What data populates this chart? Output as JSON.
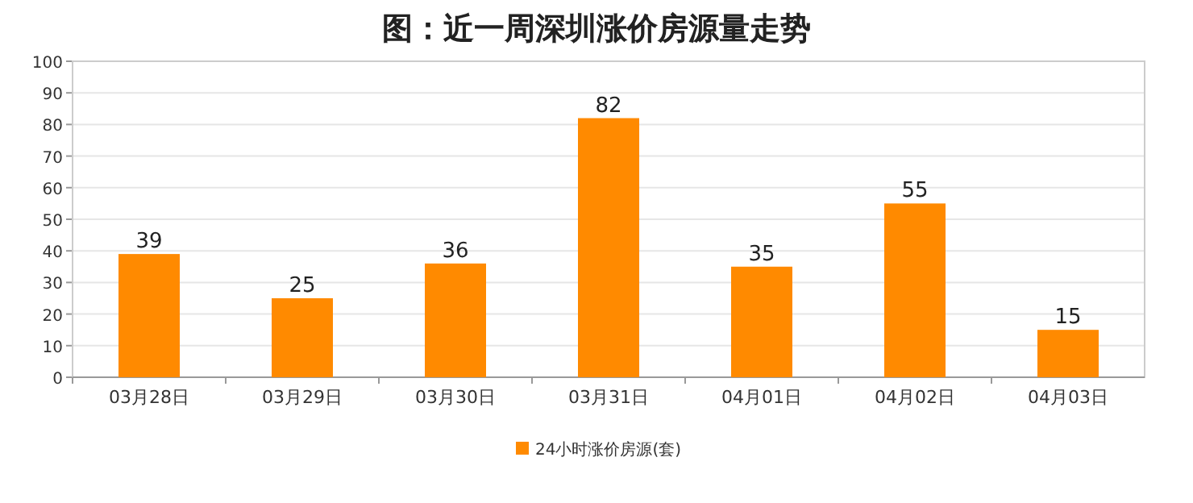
{
  "chart_data": {
    "type": "bar",
    "title": "图：近一周深圳涨价房源量走势",
    "categories": [
      "03月28日",
      "03月29日",
      "03月30日",
      "03月31日",
      "04月01日",
      "04月02日",
      "04月03日"
    ],
    "series": [
      {
        "name": "24小时涨价房源(套)",
        "color": "#ff8a00",
        "values": [
          39,
          25,
          36,
          82,
          35,
          55,
          15
        ]
      }
    ],
    "ylim": [
      0,
      100
    ],
    "yticks": [
      0,
      10,
      20,
      30,
      40,
      50,
      60,
      70,
      80,
      90,
      100
    ],
    "grid": "y",
    "legend": "bottom",
    "data_labels": true
  }
}
